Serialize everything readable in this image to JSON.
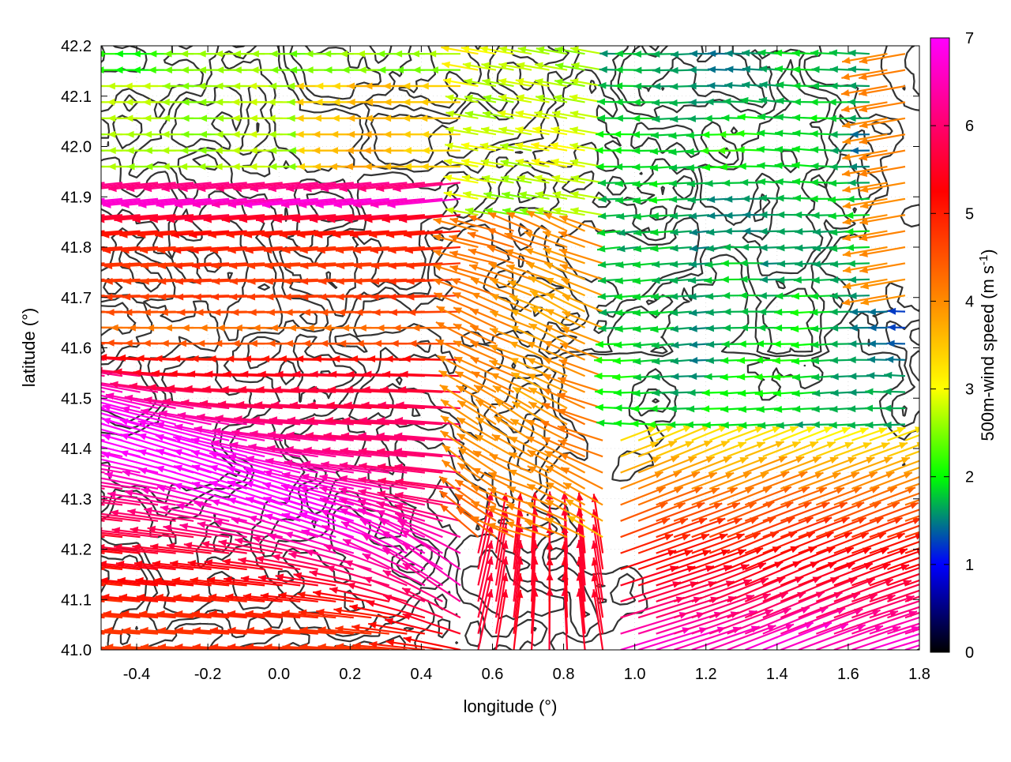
{
  "chart_data": {
    "type": "vector-field",
    "xlabel": "longitude (°)",
    "ylabel": "latitude (°)",
    "colorbar_label_main": "500m-wind speed (m s",
    "colorbar_label_sup": "-1",
    "colorbar_label_end": ")",
    "xlim": [
      -0.5,
      1.8
    ],
    "ylim": [
      41.0,
      42.2
    ],
    "colorbar_range": [
      0,
      7
    ],
    "xticks": [
      -0.4,
      -0.2,
      0.0,
      0.2,
      0.4,
      0.6,
      0.8,
      1.0,
      1.2,
      1.4,
      1.6,
      1.8
    ],
    "xtick_labels": [
      "-0.4",
      "-0.2",
      "0.0",
      "0.2",
      "0.4",
      "0.6",
      "0.8",
      "1.0",
      "1.2",
      "1.4",
      "1.6",
      "1.8"
    ],
    "yticks": [
      41.0,
      41.1,
      41.2,
      41.3,
      41.4,
      41.5,
      41.6,
      41.7,
      41.8,
      41.9,
      42.0,
      42.1,
      42.2
    ],
    "ytick_labels": [
      "41.0",
      "41.1",
      "41.2",
      "41.3",
      "41.4",
      "41.5",
      "41.6",
      "41.7",
      "41.8",
      "41.9",
      "42.0",
      "42.1",
      "42.2"
    ],
    "colorbar_ticks": [
      0,
      1,
      2,
      3,
      4,
      5,
      6,
      7
    ],
    "colorbar_tick_labels": [
      "0",
      "1",
      "2",
      "3",
      "4",
      "5",
      "6",
      "7"
    ],
    "colormap": [
      "#000000",
      "#0000ff",
      "#00ff00",
      "#ffff00",
      "#ff8c00",
      "#ff0000",
      "#ff00ff"
    ],
    "contour_color": "#333333",
    "grid": true,
    "wind_regimes": [
      {
        "region": "west-south",
        "lon": [
          -0.5,
          0.3
        ],
        "lat": [
          41.0,
          41.7
        ],
        "speed_ms": 6.0,
        "direction": "toward-west"
      },
      {
        "region": "magenta-jet",
        "lon": [
          -0.5,
          0.6
        ],
        "lat": [
          41.0,
          41.4
        ],
        "speed_ms": 6.8,
        "direction": "toward-west-north-west"
      },
      {
        "region": "north-west",
        "lon": [
          -0.5,
          0.2
        ],
        "lat": [
          41.9,
          42.2
        ],
        "speed_ms": 2.5,
        "direction": "toward-west"
      },
      {
        "region": "north-east",
        "lon": [
          0.9,
          1.8
        ],
        "lat": [
          41.5,
          42.2
        ],
        "speed_ms": 1.3,
        "direction": "toward-west"
      },
      {
        "region": "south-east",
        "lon": [
          1.0,
          1.8
        ],
        "lat": [
          41.0,
          41.4
        ],
        "speed_ms": 4.5,
        "direction": "toward-east-north-east"
      }
    ]
  }
}
